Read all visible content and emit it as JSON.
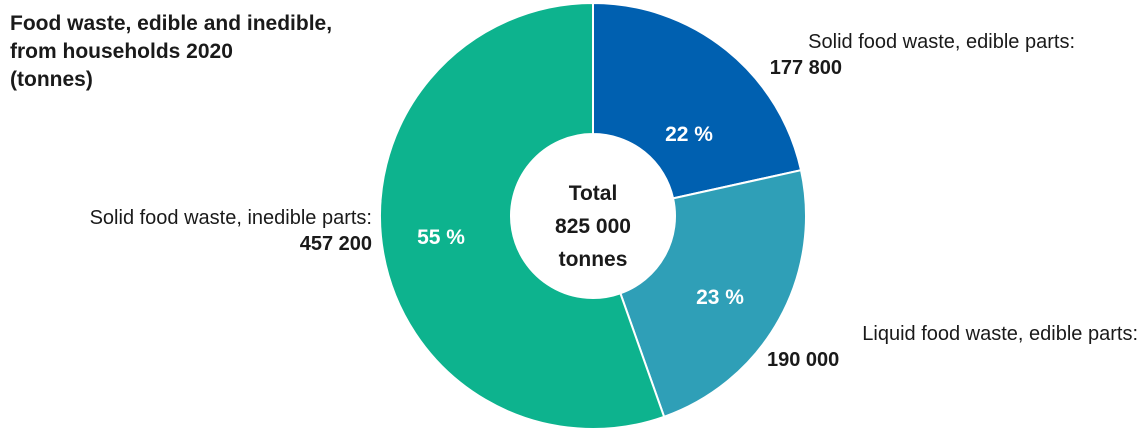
{
  "chart_data": {
    "type": "pie",
    "title_lines": [
      "Food waste, edible and inedible,",
      "from households 2020",
      "(tonnes)"
    ],
    "center_lines": [
      "Total",
      "825 000",
      "tonnes"
    ],
    "slices": [
      {
        "label": "Solid food waste, edible parts:",
        "value": 177800,
        "value_text": "177 800",
        "percent_text": "22 %",
        "color": "#0060b0"
      },
      {
        "label": "Liquid food waste, edible parts:",
        "value": 190000,
        "value_text": "190 000",
        "percent_text": "23 %",
        "color": "#2f9fb7"
      },
      {
        "label": "Solid food waste, inedible parts:",
        "value": 457200,
        "value_text": "457 200",
        "percent_text": "55 %",
        "color": "#0db38e"
      }
    ]
  }
}
